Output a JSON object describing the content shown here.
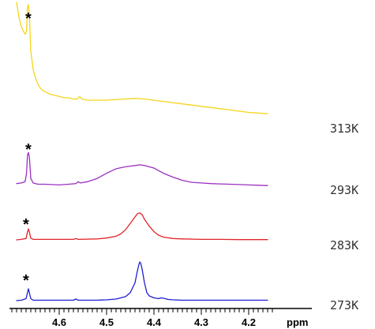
{
  "chart_data": {
    "type": "line",
    "title": "",
    "xlabel": "ppm",
    "ylabel": "",
    "x_reversed": true,
    "xlim": [
      4.7,
      4.14
    ],
    "x_ticks": [
      4.6,
      4.5,
      4.4,
      4.3,
      4.2
    ],
    "x_tick_labels": [
      "4.6",
      "4.5",
      "4.4",
      "4.3",
      "4.2"
    ],
    "grid": false,
    "legend": "none",
    "marker_symbol": "*",
    "marker_x": 4.665,
    "series": [
      {
        "name": "313K",
        "color": "#f5d51b",
        "x": [
          4.69,
          4.685,
          4.68,
          4.675,
          4.672,
          4.669,
          4.667,
          4.665,
          4.663,
          4.66,
          4.655,
          4.65,
          4.645,
          4.64,
          4.635,
          4.63,
          4.62,
          4.61,
          4.6,
          4.59,
          4.58,
          4.57,
          4.562,
          4.557,
          4.552,
          4.54,
          4.52,
          4.5,
          4.48,
          4.46,
          4.44,
          4.42,
          4.4,
          4.38,
          4.36,
          4.34,
          4.32,
          4.3,
          4.28,
          4.26,
          4.24,
          4.22,
          4.2,
          4.18,
          4.16
        ],
        "y": [
          1.0,
          0.88,
          0.8,
          0.76,
          0.74,
          0.76,
          0.96,
          0.98,
          0.9,
          0.6,
          0.45,
          0.38,
          0.33,
          0.3,
          0.28,
          0.27,
          0.25,
          0.24,
          0.23,
          0.22,
          0.22,
          0.21,
          0.21,
          0.23,
          0.21,
          0.2,
          0.2,
          0.2,
          0.205,
          0.21,
          0.215,
          0.21,
          0.2,
          0.19,
          0.18,
          0.17,
          0.16,
          0.15,
          0.14,
          0.13,
          0.12,
          0.11,
          0.1,
          0.095,
          0.09
        ]
      },
      {
        "name": "293K",
        "color": "#9b30c0",
        "x": [
          4.69,
          4.68,
          4.672,
          4.669,
          4.667,
          4.665,
          4.663,
          4.66,
          4.655,
          4.645,
          4.63,
          4.6,
          4.58,
          4.565,
          4.56,
          4.555,
          4.54,
          4.52,
          4.5,
          4.48,
          4.46,
          4.45,
          4.44,
          4.43,
          4.42,
          4.41,
          4.4,
          4.39,
          4.38,
          4.36,
          4.34,
          4.32,
          4.3,
          4.28,
          4.26,
          4.24,
          4.22,
          4.2,
          4.18,
          4.16
        ],
        "y": [
          0.04,
          0.05,
          0.07,
          0.2,
          0.48,
          0.52,
          0.45,
          0.12,
          0.05,
          0.03,
          0.03,
          0.02,
          0.03,
          0.04,
          0.07,
          0.05,
          0.07,
          0.12,
          0.2,
          0.27,
          0.3,
          0.31,
          0.32,
          0.33,
          0.32,
          0.3,
          0.28,
          0.24,
          0.2,
          0.14,
          0.09,
          0.06,
          0.05,
          0.04,
          0.035,
          0.03,
          0.025,
          0.02,
          0.015,
          0.01
        ]
      },
      {
        "name": "283K",
        "color": "#e2242a",
        "x": [
          4.69,
          4.68,
          4.67,
          4.667,
          4.665,
          4.663,
          4.66,
          4.655,
          4.64,
          4.6,
          4.57,
          4.565,
          4.56,
          4.52,
          4.5,
          4.48,
          4.47,
          4.46,
          4.45,
          4.44,
          4.435,
          4.43,
          4.425,
          4.42,
          4.41,
          4.4,
          4.39,
          4.38,
          4.36,
          4.34,
          4.3,
          4.26,
          4.22,
          4.18,
          4.16
        ],
        "y": [
          0.0,
          0.01,
          0.03,
          0.17,
          0.24,
          0.17,
          0.04,
          0.01,
          0.01,
          0.01,
          0.01,
          0.03,
          0.01,
          0.02,
          0.04,
          0.08,
          0.13,
          0.22,
          0.36,
          0.5,
          0.57,
          0.59,
          0.55,
          0.45,
          0.3,
          0.18,
          0.1,
          0.06,
          0.03,
          0.02,
          0.01,
          0.01,
          0.005,
          0.005,
          0.005
        ]
      },
      {
        "name": "273K",
        "color": "#1f1fd0",
        "x": [
          4.69,
          4.68,
          4.67,
          4.667,
          4.665,
          4.663,
          4.66,
          4.655,
          4.64,
          4.6,
          4.57,
          4.565,
          4.56,
          4.52,
          4.5,
          4.48,
          4.46,
          4.45,
          4.44,
          4.435,
          4.432,
          4.43,
          4.428,
          4.425,
          4.42,
          4.415,
          4.41,
          4.4,
          4.39,
          4.385,
          4.38,
          4.37,
          4.36,
          4.34,
          4.3,
          4.26,
          4.22,
          4.18,
          4.16
        ],
        "y": [
          0.0,
          0.01,
          0.05,
          0.2,
          0.3,
          0.2,
          0.05,
          0.01,
          0.01,
          0.01,
          0.01,
          0.04,
          0.01,
          0.01,
          0.02,
          0.04,
          0.1,
          0.2,
          0.45,
          0.75,
          0.9,
          0.98,
          0.95,
          0.8,
          0.45,
          0.2,
          0.12,
          0.07,
          0.05,
          0.07,
          0.06,
          0.03,
          0.02,
          0.01,
          0.01,
          0.01,
          0.01,
          0.01,
          0.01
        ]
      }
    ]
  }
}
